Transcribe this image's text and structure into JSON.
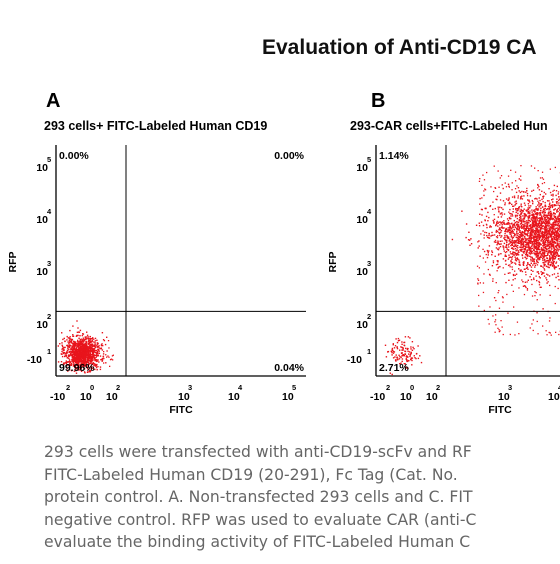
{
  "title": "Evaluation of Anti-CD19 CA",
  "caption_lines": [
    "293 cells were transfected with anti-CD19-scFv and RF",
    "FITC-Labeled Human CD19 (20-291), Fc Tag (Cat. No.",
    "protein control. A. Non-transfected 293 cells and C. FIT",
    "negative control. RFP was used to evaluate CAR (anti-C",
    "evaluate the binding activity of FITC-Labeled Human C"
  ],
  "colors": {
    "dots": "#e8141c",
    "axis": "#000000",
    "caption": "#666666"
  },
  "chart_data": [
    {
      "type": "scatter",
      "panel_label": "A",
      "title": "293 cells+ FITC-Labeled Human CD19",
      "xlabel": "FITC",
      "ylabel": "RFP",
      "log_scale": true,
      "xlim": [
        -200,
        100000
      ],
      "ylim": [
        -200,
        100000
      ],
      "gates": {
        "x": 100,
        "y": 100
      },
      "x_ticks": [
        {
          "base": "-10",
          "exp": "2"
        },
        {
          "base": "10",
          "exp": "0"
        },
        {
          "base": "10",
          "exp": "2"
        },
        {
          "base": "10",
          "exp": "3"
        },
        {
          "base": "10",
          "exp": "4"
        },
        {
          "base": "10",
          "exp": "5"
        }
      ],
      "y_ticks": [
        {
          "base": "10",
          "exp": "5"
        },
        {
          "base": "10",
          "exp": "4"
        },
        {
          "base": "10",
          "exp": "3"
        },
        {
          "base": "10",
          "exp": "2"
        },
        {
          "base": "-10",
          "exp": "1"
        }
      ],
      "quadrants": {
        "upper_left": "0.00%",
        "upper_right": "0.00%",
        "lower_left": "99.96%",
        "lower_right": "0.04%"
      },
      "populations": [
        {
          "name": "",
          "fitc": 1,
          "rfp": 1,
          "count": 1100
        }
      ]
    },
    {
      "type": "scatter",
      "panel_label": "B",
      "title": "293-CAR cells+FITC-Labeled Hun",
      "xlabel": "FITC",
      "ylabel": "RFP",
      "log_scale": true,
      "xlim": [
        -200,
        100000
      ],
      "ylim": [
        -200,
        100000
      ],
      "gates": {
        "x": 100,
        "y": 100
      },
      "x_ticks": [
        {
          "base": "-10",
          "exp": "2"
        },
        {
          "base": "10",
          "exp": "0"
        },
        {
          "base": "10",
          "exp": "2"
        },
        {
          "base": "10",
          "exp": "3"
        },
        {
          "base": "10",
          "exp": "4"
        }
      ],
      "y_ticks": [
        {
          "base": "10",
          "exp": "5"
        },
        {
          "base": "10",
          "exp": "4"
        },
        {
          "base": "10",
          "exp": "3"
        },
        {
          "base": "10",
          "exp": "2"
        },
        {
          "base": "-10",
          "exp": "1"
        }
      ],
      "quadrants": {
        "upper_left": "1.14%",
        "lower_left": "2.71%"
      },
      "populations": [
        {
          "name": "",
          "fitc": 7000,
          "rfp": 4000,
          "count": 2600
        },
        {
          "name": "",
          "fitc": 1,
          "rfp": 1,
          "count": 130
        }
      ]
    }
  ]
}
